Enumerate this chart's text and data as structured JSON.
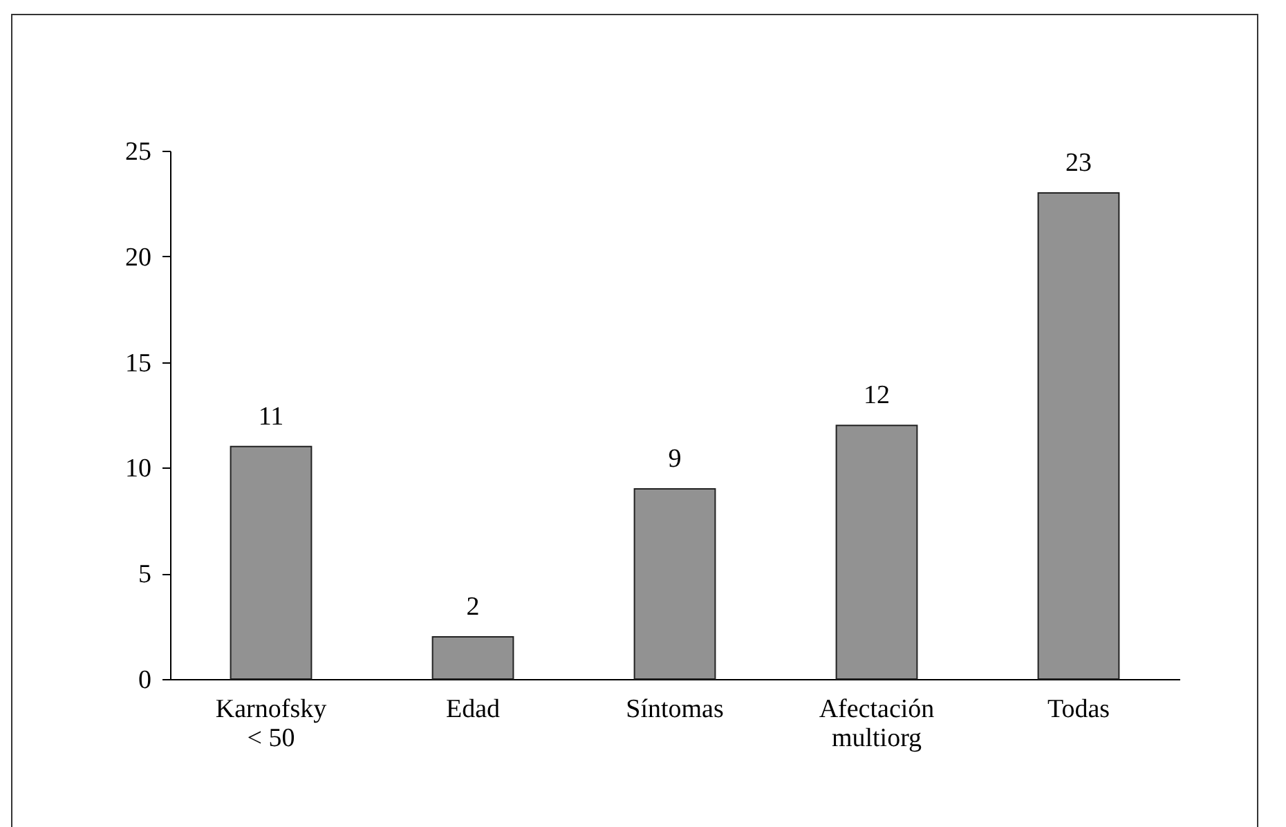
{
  "chart_data": {
    "type": "bar",
    "categories": [
      "Karnofsky < 50",
      "Edad",
      "Síntomas",
      "Afectación multiorg",
      "Todas"
    ],
    "values": [
      11,
      2,
      9,
      12,
      23
    ],
    "color": "#929292",
    "ylim": [
      0,
      25
    ],
    "yticks": [
      0,
      5,
      10,
      15,
      20,
      25
    ],
    "grid": false,
    "data_labels": true
  }
}
